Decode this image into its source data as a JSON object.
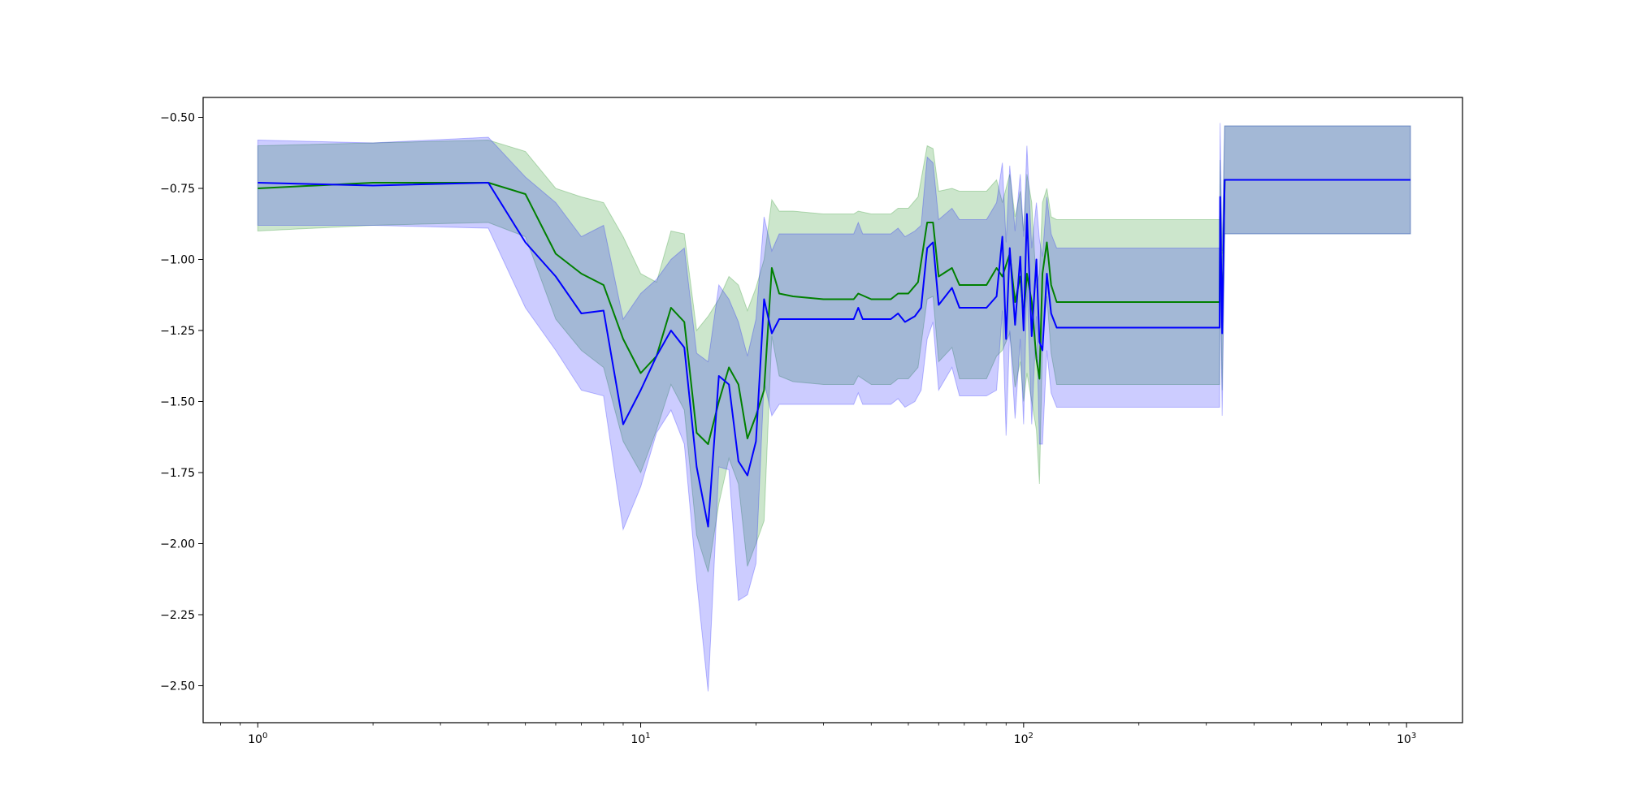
{
  "chart_data": {
    "type": "line",
    "title": "",
    "xlabel": "",
    "ylabel": "",
    "x_scale": "log",
    "xlim": [
      0.72,
      1400
    ],
    "ylim": [
      -2.63,
      -0.43
    ],
    "grid": false,
    "x_ticks": [
      {
        "value": 1,
        "base": "10",
        "exp": "0"
      },
      {
        "value": 10,
        "base": "10",
        "exp": "1"
      },
      {
        "value": 100,
        "base": "10",
        "exp": "2"
      },
      {
        "value": 1000,
        "base": "10",
        "exp": "3"
      }
    ],
    "y_ticks": [
      {
        "value": -0.5,
        "label": "−0.50"
      },
      {
        "value": -0.75,
        "label": "−0.75"
      },
      {
        "value": -1.0,
        "label": "−1.00"
      },
      {
        "value": -1.25,
        "label": "−1.25"
      },
      {
        "value": -1.5,
        "label": "−1.50"
      },
      {
        "value": -1.75,
        "label": "−1.75"
      },
      {
        "value": -2.0,
        "label": "−2.00"
      },
      {
        "value": -2.25,
        "label": "−2.25"
      },
      {
        "value": -2.5,
        "label": "−2.50"
      }
    ],
    "series": [
      {
        "color": "#008000",
        "band_color": "#008000",
        "band_opacity": 0.2,
        "points": [
          [
            1,
            -0.75,
            -0.6,
            -0.9
          ],
          [
            2,
            -0.73,
            -0.59,
            -0.88
          ],
          [
            4,
            -0.73,
            -0.58,
            -0.87
          ],
          [
            5,
            -0.77,
            -0.62,
            -0.92
          ],
          [
            6,
            -0.98,
            -0.75,
            -1.21
          ],
          [
            7,
            -1.05,
            -0.78,
            -1.32
          ],
          [
            8,
            -1.09,
            -0.8,
            -1.38
          ],
          [
            9,
            -1.28,
            -0.92,
            -1.64
          ],
          [
            10,
            -1.4,
            -1.05,
            -1.75
          ],
          [
            11,
            -1.34,
            -1.08,
            -1.6
          ],
          [
            12,
            -1.17,
            -0.9,
            -1.44
          ],
          [
            13,
            -1.22,
            -0.91,
            -1.53
          ],
          [
            14,
            -1.61,
            -1.25,
            -1.97
          ],
          [
            15,
            -1.65,
            -1.2,
            -2.1
          ],
          [
            16,
            -1.5,
            -1.14,
            -1.86
          ],
          [
            17,
            -1.38,
            -1.06,
            -1.7
          ],
          [
            18,
            -1.44,
            -1.09,
            -1.79
          ],
          [
            19,
            -1.63,
            -1.18,
            -2.08
          ],
          [
            20,
            -1.55,
            -1.1,
            -2.0
          ],
          [
            21,
            -1.46,
            -1.0,
            -1.92
          ],
          [
            22,
            -1.03,
            -0.79,
            -1.27
          ],
          [
            23,
            -1.12,
            -0.83,
            -1.41
          ],
          [
            25,
            -1.13,
            -0.83,
            -1.43
          ],
          [
            30,
            -1.14,
            -0.84,
            -1.44
          ],
          [
            36,
            -1.14,
            -0.84,
            -1.44
          ],
          [
            37,
            -1.12,
            -0.83,
            -1.41
          ],
          [
            40,
            -1.14,
            -0.84,
            -1.44
          ],
          [
            45,
            -1.14,
            -0.84,
            -1.44
          ],
          [
            47,
            -1.12,
            -0.82,
            -1.42
          ],
          [
            50,
            -1.12,
            -0.82,
            -1.42
          ],
          [
            53,
            -1.08,
            -0.78,
            -1.38
          ],
          [
            56,
            -0.87,
            -0.6,
            -1.14
          ],
          [
            58,
            -0.87,
            -0.61,
            -1.13
          ],
          [
            60,
            -1.06,
            -0.76,
            -1.36
          ],
          [
            65,
            -1.03,
            -0.75,
            -1.31
          ],
          [
            68,
            -1.09,
            -0.76,
            -1.42
          ],
          [
            80,
            -1.09,
            -0.76,
            -1.42
          ],
          [
            85,
            -1.03,
            -0.72,
            -1.34
          ],
          [
            88,
            -1.06,
            -0.8,
            -1.32
          ],
          [
            92,
            -0.98,
            -0.7,
            -1.26
          ],
          [
            95,
            -1.15,
            -0.85,
            -1.45
          ],
          [
            98,
            -1.06,
            -0.76,
            -1.36
          ],
          [
            100,
            -1.2,
            -0.9,
            -1.5
          ],
          [
            102,
            -1.05,
            -0.7,
            -1.4
          ],
          [
            105,
            -1.15,
            -0.8,
            -1.5
          ],
          [
            108,
            -1.35,
            -1.1,
            -1.6
          ],
          [
            110,
            -1.42,
            -1.05,
            -1.79
          ],
          [
            112,
            -1.05,
            -0.8,
            -1.3
          ],
          [
            115,
            -0.94,
            -0.75,
            -1.13
          ],
          [
            118,
            -1.09,
            -0.85,
            -1.33
          ],
          [
            122,
            -1.15,
            -0.86,
            -1.44
          ],
          [
            200,
            -1.15,
            -0.86,
            -1.44
          ],
          [
            325,
            -1.15,
            -0.86,
            -1.44
          ],
          [
            326,
            -0.85,
            -0.65,
            -1.05
          ],
          [
            330,
            -1.22,
            -0.98,
            -1.46
          ],
          [
            335,
            -0.72,
            -0.53,
            -0.91
          ],
          [
            1024,
            -0.72,
            -0.53,
            -0.91
          ]
        ]
      },
      {
        "color": "#0000ff",
        "band_color": "#0000ff",
        "band_opacity": 0.2,
        "points": [
          [
            1,
            -0.73,
            -0.58,
            -0.88
          ],
          [
            2,
            -0.74,
            -0.59,
            -0.88
          ],
          [
            4,
            -0.73,
            -0.57,
            -0.89
          ],
          [
            5,
            -0.94,
            -0.71,
            -1.17
          ],
          [
            6,
            -1.06,
            -0.8,
            -1.32
          ],
          [
            7,
            -1.19,
            -0.92,
            -1.46
          ],
          [
            8,
            -1.18,
            -0.88,
            -1.48
          ],
          [
            9,
            -1.58,
            -1.21,
            -1.95
          ],
          [
            10,
            -1.46,
            -1.12,
            -1.8
          ],
          [
            11,
            -1.34,
            -1.07,
            -1.61
          ],
          [
            12,
            -1.25,
            -1.0,
            -1.53
          ],
          [
            13,
            -1.31,
            -0.96,
            -1.65
          ],
          [
            14,
            -1.73,
            -1.33,
            -2.13
          ],
          [
            15,
            -1.94,
            -1.36,
            -2.52
          ],
          [
            16,
            -1.41,
            -1.09,
            -1.73
          ],
          [
            17,
            -1.44,
            -1.14,
            -1.74
          ],
          [
            18,
            -1.71,
            -1.22,
            -2.2
          ],
          [
            19,
            -1.76,
            -1.34,
            -2.18
          ],
          [
            20,
            -1.64,
            -1.21,
            -2.07
          ],
          [
            21,
            -1.14,
            -0.85,
            -1.43
          ],
          [
            22,
            -1.26,
            -0.97,
            -1.55
          ],
          [
            23,
            -1.21,
            -0.91,
            -1.51
          ],
          [
            25,
            -1.21,
            -0.91,
            -1.51
          ],
          [
            30,
            -1.21,
            -0.91,
            -1.51
          ],
          [
            36,
            -1.21,
            -0.91,
            -1.51
          ],
          [
            37,
            -1.17,
            -0.87,
            -1.47
          ],
          [
            38,
            -1.21,
            -0.91,
            -1.51
          ],
          [
            45,
            -1.21,
            -0.91,
            -1.51
          ],
          [
            47,
            -1.19,
            -0.89,
            -1.49
          ],
          [
            49,
            -1.22,
            -0.92,
            -1.52
          ],
          [
            52,
            -1.2,
            -0.9,
            -1.5
          ],
          [
            54,
            -1.17,
            -0.88,
            -1.46
          ],
          [
            56,
            -0.96,
            -0.64,
            -1.28
          ],
          [
            58,
            -0.94,
            -0.66,
            -1.22
          ],
          [
            60,
            -1.16,
            -0.86,
            -1.46
          ],
          [
            65,
            -1.1,
            -0.82,
            -1.38
          ],
          [
            68,
            -1.17,
            -0.86,
            -1.48
          ],
          [
            80,
            -1.17,
            -0.86,
            -1.48
          ],
          [
            85,
            -1.13,
            -0.8,
            -1.46
          ],
          [
            88,
            -0.92,
            -0.66,
            -1.18
          ],
          [
            90,
            -1.28,
            -0.94,
            -1.62
          ],
          [
            92,
            -0.96,
            -0.67,
            -1.25
          ],
          [
            95,
            -1.23,
            -0.9,
            -1.56
          ],
          [
            98,
            -0.99,
            -0.7,
            -1.28
          ],
          [
            100,
            -1.25,
            -0.92,
            -1.58
          ],
          [
            102,
            -0.84,
            -0.6,
            -1.08
          ],
          [
            105,
            -1.27,
            -0.96,
            -1.58
          ],
          [
            108,
            -1.0,
            -0.8,
            -1.2
          ],
          [
            110,
            -1.29,
            -0.93,
            -1.65
          ],
          [
            112,
            -1.32,
            -0.99,
            -1.65
          ],
          [
            115,
            -1.05,
            -0.78,
            -1.32
          ],
          [
            118,
            -1.19,
            -0.91,
            -1.47
          ],
          [
            122,
            -1.24,
            -0.96,
            -1.52
          ],
          [
            200,
            -1.24,
            -0.96,
            -1.52
          ],
          [
            325,
            -1.24,
            -0.96,
            -1.52
          ],
          [
            326,
            -0.78,
            -0.52,
            -1.04
          ],
          [
            330,
            -1.26,
            -0.97,
            -1.55
          ],
          [
            335,
            -0.72,
            -0.53,
            -0.91
          ],
          [
            1024,
            -0.72,
            -0.53,
            -0.91
          ]
        ]
      }
    ]
  }
}
